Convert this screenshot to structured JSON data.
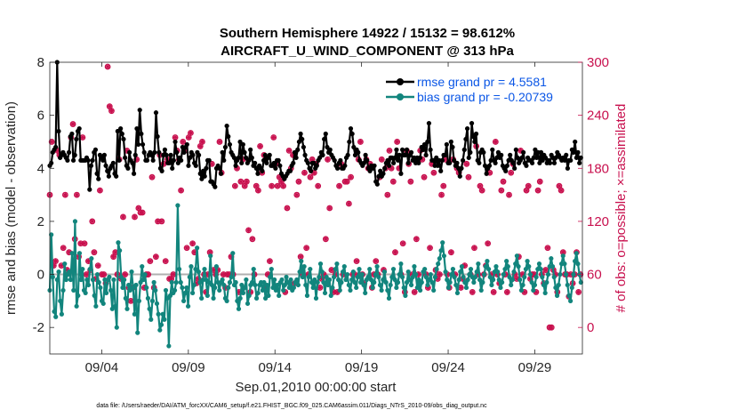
{
  "chart_data": {
    "type": "line",
    "title_line1": "Southern Hemisphere 14922 / 15132 = 98.612%",
    "title_line2": "AIRCRAFT_U_WIND_COMPONENT @ 313 hPa",
    "xlabel": "Sep.01,2010 00:00:00 start",
    "ylabel_left": "rmse and bias (model - observation)",
    "ylabel_right": "# of obs: o=possible; ×=assimilated",
    "xlim": [
      0,
      30.75
    ],
    "ylim_left": [
      -3,
      8
    ],
    "ylim_right": [
      -30,
      300
    ],
    "x_ticks": [
      {
        "x": 3,
        "label": "09/04"
      },
      {
        "x": 8,
        "label": "09/09"
      },
      {
        "x": 13,
        "label": "09/14"
      },
      {
        "x": 18,
        "label": "09/19"
      },
      {
        "x": 23,
        "label": "09/24"
      },
      {
        "x": 28,
        "label": "09/29"
      }
    ],
    "y_ticks_left": [
      "-2",
      "0",
      "2",
      "4",
      "6",
      "8"
    ],
    "y_ticks_left_values": [
      -2,
      0,
      2,
      4,
      6,
      8
    ],
    "y_ticks_right": [
      "0",
      "60",
      "120",
      "180",
      "240",
      "300"
    ],
    "y_ticks_right_values": [
      0,
      60,
      120,
      180,
      240,
      300
    ],
    "legend": [
      {
        "label": "rmse grand pr = 4.5581",
        "color": "#000000"
      },
      {
        "label": "bias grand pr = -0.20739",
        "color": "#12857d"
      }
    ],
    "colors": {
      "rmse": "#000000",
      "bias": "#12857d",
      "obs": "#c8104e",
      "zero_line": "#b0b0b0"
    },
    "time_step_days": 0.25,
    "series": [
      {
        "name": "rmse",
        "values": [
          4.1,
          4.2,
          4.6,
          4.7,
          4.8,
          8.0,
          5.4,
          4.4,
          4.5,
          4.6,
          4.5,
          4.4,
          4.3,
          4.6,
          5.2,
          5.3,
          4.3,
          4.5,
          5.1,
          5.4,
          5.5,
          4.3,
          4.3,
          4.3,
          4.3,
          4.4,
          4.3,
          3.2,
          4.1,
          4.3,
          4.6,
          4.7,
          3.8,
          3.6,
          4.5,
          4.4,
          4.3,
          4.5,
          4.1,
          3.9,
          3.7,
          4.0,
          4.1,
          4.2,
          3.8,
          3.7,
          5.4,
          4.3,
          5.5,
          5.3,
          5.1,
          4.4,
          4.1,
          4.0,
          4.6,
          4.3,
          4.2,
          3.8,
          4.5,
          5.5,
          4.9,
          6.2,
          5.3,
          4.9,
          4.6,
          4.3,
          4.3,
          4.5,
          4.6,
          4.5,
          4.3,
          4.6,
          6.1,
          5.2,
          4.6,
          4.0,
          3.9,
          4.5,
          4.7,
          4.5,
          4.2,
          4.2,
          4.5,
          4.0,
          4.3,
          5.0,
          4.6,
          4.2,
          4.4,
          4.3,
          4.8,
          4.6,
          4.8,
          4.9,
          4.1,
          4.4,
          4.6,
          4.5,
          4.2,
          4.1,
          4.6,
          4.5,
          3.8,
          3.6,
          3.9,
          3.7,
          4.0,
          4.3,
          4.3,
          3.5,
          3.5,
          3.4,
          3.3,
          4.0,
          4.1,
          4.0,
          3.8,
          4.6,
          4.3,
          4.8,
          5.6,
          5.2,
          4.9,
          4.6,
          4.5,
          4.4,
          4.1,
          4.3,
          4.4,
          5.0,
          4.2,
          4.9,
          4.6,
          4.4,
          4.2,
          4.3,
          4.7,
          4.4,
          4.1,
          4.2,
          4.0,
          3.8,
          4.1,
          4.0,
          3.9,
          4.3,
          4.5,
          4.2,
          4.4,
          4.5,
          4.1,
          4.1,
          4.2,
          4.0,
          4.3,
          4.3,
          4.1,
          3.8,
          3.7,
          3.6,
          3.7,
          3.8,
          3.9,
          3.9,
          4.1,
          4.2,
          4.6,
          4.4,
          4.7,
          5.0,
          5.3,
          5.1,
          4.8,
          4.5,
          4.3,
          4.2,
          4.0,
          3.9,
          4.2,
          4.2,
          4.0,
          4.1,
          4.3,
          4.4,
          4.6,
          4.5,
          5.1,
          5.3,
          4.8,
          4.6,
          4.7,
          4.5,
          4.4,
          4.3,
          4.1,
          4.0,
          4.2,
          4.3,
          4.0,
          4.0,
          4.1,
          4.4,
          4.5,
          5.0,
          5.5,
          5.3,
          4.8,
          4.5,
          4.7,
          4.6,
          4.3,
          4.2,
          4.1,
          4.2,
          4.5,
          4.3,
          4.0,
          3.9,
          4.1,
          4.0,
          4.1,
          3.5,
          3.4,
          3.7,
          3.9,
          3.7,
          3.8,
          4.0,
          4.2,
          4.3,
          4.1,
          4.4,
          4.4,
          4.2,
          4.4,
          4.7,
          4.3,
          4.5,
          3.8,
          4.7,
          4.5,
          4.5,
          4.7,
          4.2,
          4.5,
          4.6,
          4.3,
          4.4,
          4.2,
          4.4,
          4.2,
          4.4,
          4.8,
          4.7,
          4.9,
          4.5,
          5.0,
          5.7,
          4.7,
          4.3,
          4.3,
          4.1,
          4.4,
          4.1,
          4.3,
          3.9,
          4.3,
          4.5,
          4.5,
          4.9,
          4.2,
          4.2,
          5.0,
          4.8,
          4.3,
          4.1,
          4.2,
          4.0,
          3.7,
          4.0,
          4.3,
          4.7,
          5.1,
          5.5,
          4.4,
          4.6,
          5.7,
          5.2,
          5.0,
          5.3,
          4.3,
          4.2,
          4.6,
          4.7,
          4.6,
          4.1,
          3.8,
          4.0,
          4.1,
          4.3,
          4.7,
          4.3,
          4.2,
          4.4,
          4.6,
          4.4,
          4.5,
          4.1,
          4.0,
          3.9,
          4.1,
          4.3,
          4.5,
          4.3,
          4.2,
          4.0,
          4.7,
          4.4,
          4.2,
          4.3,
          4.4,
          4.6,
          4.2,
          4.1,
          4.4,
          4.3,
          4.3,
          4.2,
          4.4,
          4.7,
          4.4,
          4.6,
          4.2,
          4.6,
          4.3,
          4.5,
          4.4,
          4.2,
          4.3,
          4.2,
          4.5,
          4.4,
          4.2,
          4.4,
          4.6,
          4.5,
          4.4,
          4.3,
          4.4,
          4.3,
          4.5,
          4.0,
          4.3,
          4.3,
          4.7,
          4.6,
          5.0,
          4.4,
          4.6,
          4.2,
          4.4
        ]
      },
      {
        "name": "bias",
        "values": [
          -0.6,
          1.5,
          -0.1,
          -1.4,
          -1.6,
          -0.2,
          0.1,
          -1.0,
          -1.5,
          -0.6,
          0.4,
          -0.2,
          0.0,
          0.1,
          -0.2,
          0.8,
          -0.6,
          2.0,
          -1.2,
          -0.8,
          0.8,
          -0.2,
          0.2,
          -0.6,
          -0.7,
          -0.2,
          -0.4,
          0.2,
          0.6,
          -0.2,
          -0.8,
          -1.2,
          0.0,
          -0.3,
          -0.5,
          -1.0,
          -1.1,
          -0.2,
          -0.7,
          -0.2,
          -0.1,
          -0.6,
          -1.3,
          -0.2,
          -1.2,
          -2.0,
          1.2,
          0.9,
          -0.1,
          -0.5,
          -0.2,
          -0.9,
          -1.3,
          -0.4,
          -0.6,
          0.1,
          -0.5,
          -1.5,
          -0.4,
          -2.2,
          -1.0,
          -0.3,
          0.3,
          -0.2,
          0.0,
          -0.5,
          -0.9,
          -1.3,
          -1.7,
          -1.0,
          -0.3,
          -0.6,
          -1.1,
          -1.5,
          -2.1,
          -1.9,
          -1.5,
          -1.7,
          -0.6,
          -0.9,
          -2.7,
          -0.8,
          -0.3,
          -0.7,
          -0.6,
          -0.3,
          2.6,
          0.2,
          -0.3,
          -0.5,
          -1.0,
          -0.7,
          -0.5,
          -1.2,
          -0.1,
          0.3,
          -0.7,
          -0.4,
          0.2,
          1.0,
          0.1,
          -0.3,
          -0.9,
          -0.2,
          0.2,
          -0.2,
          -0.8,
          -0.3,
          0.7,
          -0.4,
          -0.9,
          -0.5,
          0.3,
          -0.3,
          -0.6,
          -0.3,
          -0.2,
          -0.4,
          -0.9,
          -1.0,
          -0.5,
          -0.3,
          -0.1,
          0.8,
          -0.4,
          -0.3,
          -1.0,
          -1.3,
          -0.9,
          -0.4,
          -0.7,
          -0.5,
          -0.2,
          -1.1,
          -0.8,
          -0.4,
          -0.3,
          0.2,
          -0.4,
          -0.9,
          -0.7,
          -0.4,
          -0.3,
          -0.6,
          -0.3,
          -0.9,
          -0.4,
          -0.8,
          -0.1,
          0.2,
          -0.5,
          -0.2,
          -0.6,
          -0.4,
          -0.8,
          -0.3,
          -0.2,
          -0.6,
          -0.4,
          -0.1,
          -0.3,
          -0.5,
          -0.2,
          -0.6,
          -0.5,
          -0.3,
          -0.2,
          -0.4,
          0.1,
          0.5,
          -0.1,
          0.3,
          -0.4,
          -0.8,
          -0.1,
          0.2,
          -0.3,
          -0.5,
          -0.2,
          -0.9,
          -0.3,
          -0.1,
          0.4,
          0.1,
          -0.3,
          -0.7,
          -0.1,
          -0.4,
          -0.2,
          -0.8,
          -0.5,
          -0.1,
          0.2,
          0.4,
          -0.2,
          -0.6,
          -0.3,
          0.1,
          0.3,
          -0.2,
          0.0,
          -0.4,
          -0.6,
          -0.2,
          0.1,
          -0.3,
          -0.5,
          -0.1,
          0.2,
          -0.3,
          0.0,
          -0.4,
          -0.7,
          -0.2,
          -0.1,
          0.2,
          -0.2,
          -0.5,
          -0.3,
          0.0,
          0.3,
          -0.1,
          -0.4,
          -0.6,
          -0.2,
          0.1,
          -0.3,
          -0.6,
          -0.9,
          -0.4,
          -0.1,
          0.2,
          -0.2,
          -0.5,
          -0.3,
          0.0,
          0.4,
          -0.1,
          -0.5,
          -0.8,
          -0.3,
          0.1,
          -0.2,
          -0.4,
          -0.1,
          0.3,
          0.0,
          -0.5,
          -0.2,
          -0.6,
          -0.3,
          0.1,
          0.2,
          -0.1,
          -0.4,
          -0.2,
          0.0,
          -0.3,
          -0.6,
          -0.1,
          0.2,
          0.4,
          0.6,
          0.9,
          1.2,
          0.7,
          0.1,
          -0.2,
          -0.5,
          -0.3,
          0.0,
          0.2,
          -0.1,
          -0.4,
          -0.7,
          -0.2,
          0.1,
          0.3,
          -0.1,
          -0.3,
          -0.5,
          -0.2,
          0.0,
          0.2,
          -0.1,
          -0.3,
          -0.1,
          0.1,
          0.4,
          -0.2,
          -0.6,
          -0.3,
          0.0,
          0.3,
          0.5,
          0.2,
          -0.1,
          -0.4,
          -0.2,
          0.1,
          0.3,
          0.1,
          -0.2,
          -0.5,
          -0.3,
          0.0,
          0.2,
          0.5,
          0.3,
          -0.1,
          -0.4,
          -0.2,
          0.1,
          0.4,
          0.7,
          0.3,
          -0.2,
          -0.6,
          -0.4,
          -0.1,
          0.2,
          0.5,
          0.3,
          0.0,
          -0.3,
          -0.6,
          -0.4,
          -0.1,
          0.2,
          0.4,
          0.2,
          -0.1,
          -0.4,
          -0.7,
          -0.3,
          0.0,
          0.3,
          0.6,
          0.3,
          -0.1,
          -0.5,
          -0.8,
          -0.4,
          0.0,
          0.4,
          0.7,
          0.4,
          0.0,
          -0.4,
          -0.8,
          -1.0,
          -0.5,
          0.0,
          0.5,
          0.8,
          0.4,
          0.0,
          -0.3
        ]
      },
      {
        "name": "obs_possible",
        "values": [
          150,
          210,
          70,
          75,
          200,
          195,
          70,
          90,
          150,
          65,
          85,
          215,
          230,
          100,
          150,
          80,
          95,
          215,
          95,
          60,
          75,
          65,
          120,
          85,
          55,
          70,
          155,
          60,
          60,
          50,
          295,
          250,
          245,
          80,
          85,
          60,
          190,
          55,
          125,
          60,
          200,
          45,
          30,
          45,
          125,
          190,
          135,
          130,
          130,
          45,
          60,
          60,
          75,
          170,
          45,
          80,
          120,
          195,
          120,
          185,
          75,
          190,
          55,
          55,
          60,
          215,
          200,
          190,
          155,
          210,
          200,
          90,
          215,
          220,
          95,
          85,
          50,
          55,
          205,
          210,
          60,
          40,
          60,
          85,
          185,
          65,
          60,
          65,
          210,
          175,
          60,
          45,
          60,
          60,
          80,
          60,
          160,
          180,
          40,
          165,
          190,
          160,
          165,
          110,
          40,
          100,
          60,
          160,
          155,
          205,
          175,
          195,
          45,
          60,
          75,
          160,
          215,
          185,
          160,
          170,
          165,
          160,
          40,
          135,
          200,
          180,
          195,
          50,
          150,
          165,
          80,
          60,
          175,
          90,
          60,
          170,
          190,
          175,
          185,
          160,
          45,
          55,
          60,
          100,
          190,
          135,
          65,
          40,
          60,
          40,
          160,
          185,
          60,
          165,
          165,
          140,
          170,
          60,
          60,
          75,
          190,
          210,
          60,
          50,
          190,
          180,
          185,
          45,
          60,
          75,
          60,
          170,
          190,
          65,
          180,
          150,
          200,
          180,
          165,
          85,
          210,
          180,
          60,
          95,
          40,
          200,
          185,
          165,
          60,
          40,
          100,
          60,
          200,
          190,
          170,
          60,
          45,
          90,
          185,
          175,
          65,
          55,
          60,
          150,
          160,
          190,
          60,
          45,
          85,
          190,
          60,
          180,
          175,
          45,
          55,
          70,
          185,
          170,
          60,
          40,
          90,
          205,
          60,
          160,
          155,
          60,
          70,
          95,
          175,
          60,
          40,
          210,
          60,
          50,
          155,
          165,
          60,
          40,
          150,
          175,
          185,
          60,
          55,
          80,
          200,
          60,
          40,
          155,
          160,
          55,
          60,
          60,
          40,
          155,
          165,
          60,
          50,
          65,
          90,
          0,
          0,
          65,
          60,
          40,
          160,
          155,
          85,
          60,
          60,
          35,
          60,
          50,
          60,
          85,
          40,
          60
        ]
      }
    ]
  },
  "footer": "data file: /Users/raeder/DAI/ATM_forcXX/CAM6_setup/f.e21.FHIST_BGC.f09_025.CAM6assim.011/Diags_NTrS_2010-09/obs_diag_output.nc"
}
